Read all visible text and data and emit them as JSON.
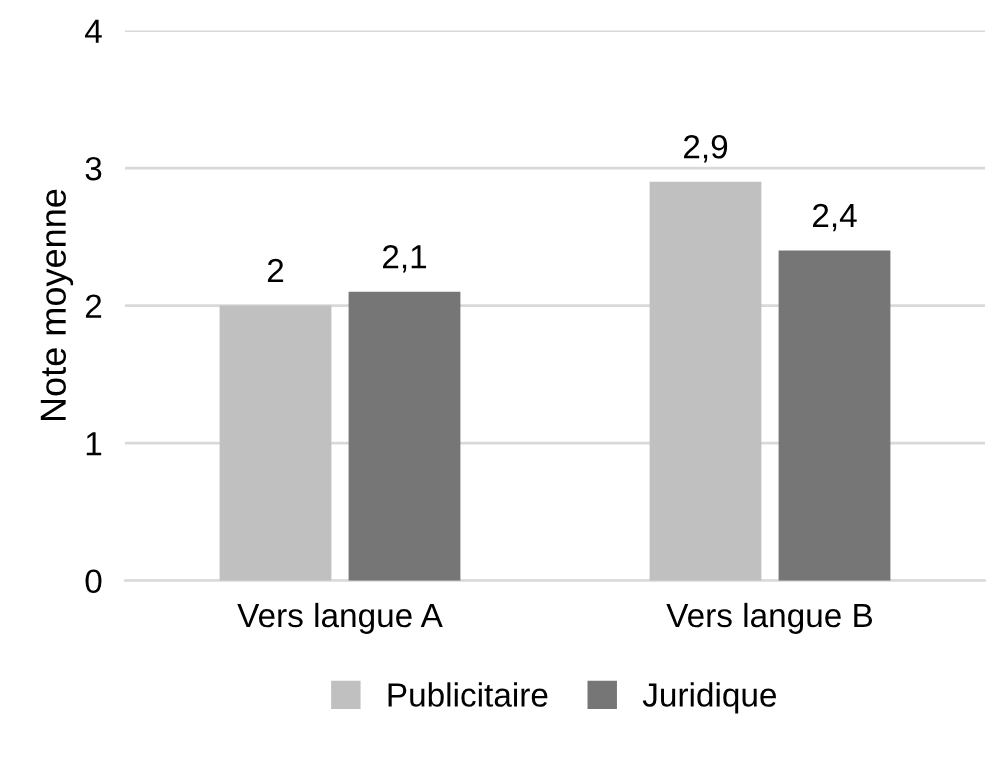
{
  "chart_data": {
    "type": "bar",
    "ylabel": "Note moyenne",
    "categories": [
      "Vers langue A",
      "Vers langue B"
    ],
    "series": [
      {
        "name": "Publicitaire",
        "color": "#c0c0c0",
        "values": [
          2,
          2.9
        ],
        "value_labels": [
          "2",
          "2,9"
        ]
      },
      {
        "name": "Juridique",
        "color": "#767676",
        "values": [
          2.1,
          2.4
        ],
        "value_labels": [
          "2,1",
          "2,4"
        ]
      }
    ],
    "ylim": [
      0,
      4
    ],
    "yticks": [
      0,
      1,
      2,
      3,
      4
    ],
    "grid": "y",
    "legend": "bottom"
  }
}
